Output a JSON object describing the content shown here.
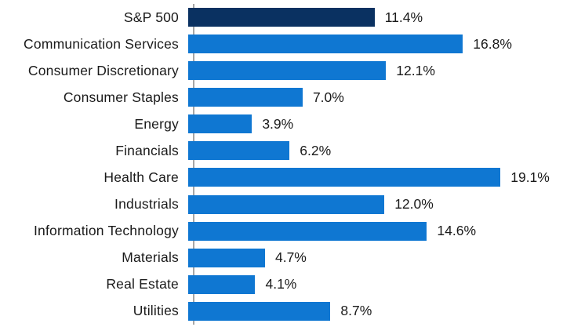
{
  "chart_data": {
    "type": "bar",
    "orientation": "horizontal",
    "title": "",
    "xlabel": "",
    "ylabel": "",
    "grid": false,
    "legend": false,
    "xlim": [
      0,
      22.5
    ],
    "categories": [
      "S&P 500",
      "Communication Services",
      "Consumer Discretionary",
      "Consumer Staples",
      "Energy",
      "Financials",
      "Health Care",
      "Industrials",
      "Information Technology",
      "Materials",
      "Real Estate",
      "Utilities"
    ],
    "values": [
      11.4,
      16.8,
      12.1,
      7.0,
      3.9,
      6.2,
      19.1,
      12.0,
      14.6,
      4.7,
      4.1,
      8.7
    ],
    "value_labels": [
      "11.4%",
      "16.8%",
      "12.1%",
      "7.0%",
      "3.9%",
      "6.2%",
      "19.1%",
      "12.0%",
      "14.6%",
      "4.7%",
      "4.1%",
      "8.7%"
    ],
    "highlight_category": "S&P 500",
    "colors": {
      "highlight_bar": "#0a3161",
      "default_bar": "#0f77d2",
      "axis_line": "#a6a6a6",
      "label_text": "#1a1a1a"
    }
  }
}
